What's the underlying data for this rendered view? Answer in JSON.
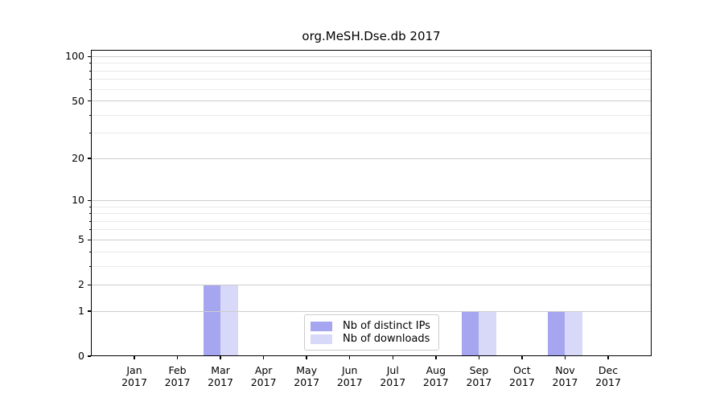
{
  "chart_data": {
    "type": "bar",
    "title": "org.MeSH.Dse.db 2017",
    "year_label": "2017",
    "categories": [
      "Jan",
      "Feb",
      "Mar",
      "Apr",
      "May",
      "Jun",
      "Jul",
      "Aug",
      "Sep",
      "Oct",
      "Nov",
      "Dec"
    ],
    "series": [
      {
        "name": "Nb of distinct IPs",
        "color": "#a5a5f0",
        "values": [
          0,
          0,
          2,
          0,
          0,
          0,
          0,
          0,
          1,
          0,
          1,
          0
        ]
      },
      {
        "name": "Nb of downloads",
        "color": "#d8d8f8",
        "values": [
          0,
          0,
          2,
          0,
          0,
          0,
          0,
          0,
          1,
          0,
          1,
          0
        ]
      }
    ],
    "y_axis": {
      "scale": "log1p",
      "major_ticks": [
        0,
        1,
        2,
        5,
        10,
        20,
        50,
        100
      ],
      "minor_ticks": [
        3,
        4,
        6,
        7,
        8,
        9,
        30,
        40,
        60,
        70,
        80,
        90
      ],
      "range_top": 111
    },
    "x_axis": {
      "tick_label_format": "month over year"
    },
    "legend": {
      "position": "bottom-center"
    },
    "colors": {
      "grid_major": "#cccccc",
      "grid_minor": "#e9e9e9",
      "axis": "#000000",
      "background": "#ffffff"
    }
  }
}
